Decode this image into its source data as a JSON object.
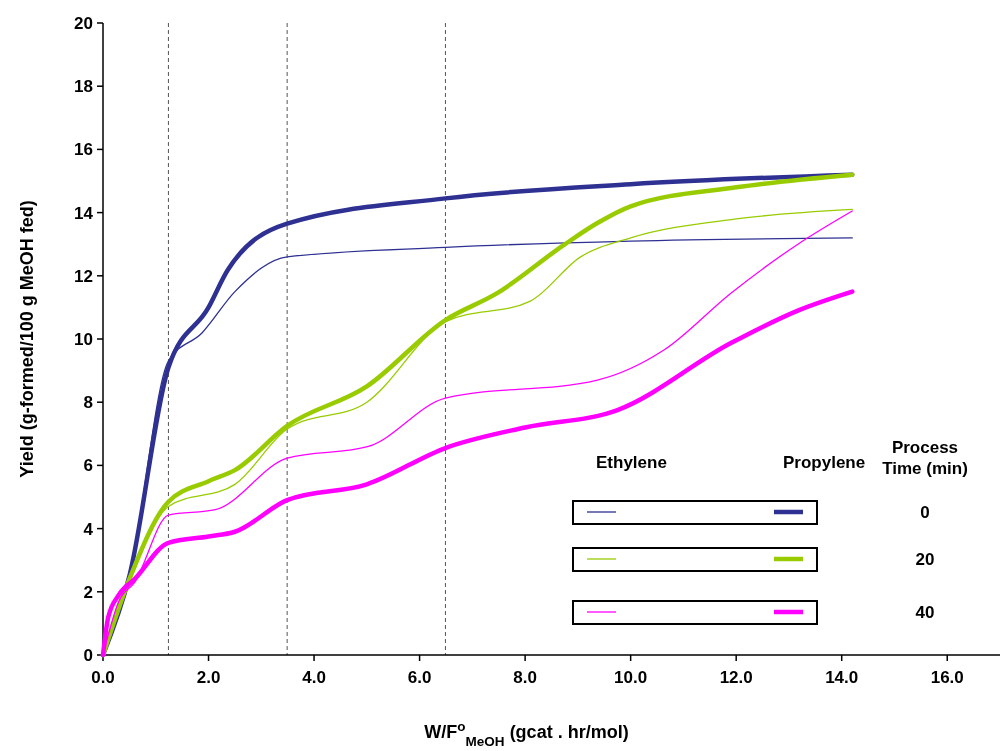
{
  "chart_data": {
    "type": "line",
    "xlabel": "W/F$^{o}$$_{MeOH}$ (gcat . hr/mol)",
    "ylabel": "Yield (g-formed/100 g MeOH fed)",
    "legend_title": "Process Time (min)",
    "annotations": [
      "Ethylene",
      "Propylene",
      "0",
      "20",
      "40"
    ],
    "grid": false,
    "line_style": "solid",
    "xlim": [
      0,
      17
    ],
    "xticks": [
      {
        "value": 0,
        "label": "0.0"
      },
      {
        "value": 2,
        "label": "2.0"
      },
      {
        "value": 4,
        "label": "4.0"
      },
      {
        "value": 6,
        "label": "6.0"
      },
      {
        "value": 8,
        "label": "8.0"
      },
      {
        "value": 10,
        "label": "10.0"
      },
      {
        "value": 12,
        "label": "12.0"
      },
      {
        "value": 14,
        "label": "14.0"
      },
      {
        "value": 16,
        "label": "16.0"
      }
    ],
    "ylim": [
      0,
      20
    ],
    "yticks": [
      0,
      2,
      4,
      6,
      8,
      10,
      12,
      14,
      16,
      18,
      20
    ],
    "ref_lines": [
      {
        "axis": "x",
        "value": 1.24,
        "color": "#555555",
        "line_style": "dashed"
      },
      {
        "axis": "x",
        "value": 3.49,
        "color": "#555555",
        "line_style": "dashed"
      },
      {
        "axis": "x",
        "value": 6.49,
        "color": "#555555",
        "line_style": "dashed"
      }
    ],
    "series": [
      {
        "color": "#2e3192",
        "x": [
          0,
          0.5,
          1.24,
          1.88,
          2.5,
          3.49,
          6.49,
          10,
          14.2
        ],
        "values": [
          0,
          2.5,
          9.3,
          10.2,
          11.5,
          12.6,
          12.9,
          13.1,
          13.2
        ]
      },
      {
        "color": "#2e3192",
        "x": [
          0,
          0.5,
          1.24,
          2.0,
          2.37,
          3.49,
          6.49,
          10,
          14.2
        ],
        "values": [
          0,
          2.5,
          9.1,
          11.0,
          12.2,
          13.65,
          14.45,
          14.9,
          15.2
        ]
      },
      {
        "color": "#99cc00",
        "x": [
          0,
          0.5,
          1.24,
          2.5,
          3.49,
          5,
          6.49,
          8.1,
          9.05,
          10,
          12,
          14.2
        ],
        "values": [
          0,
          2.3,
          4.7,
          5.4,
          7.15,
          8.0,
          10.55,
          11.2,
          12.6,
          13.2,
          13.8,
          14.1
        ]
      },
      {
        "color": "#99cc00",
        "x": [
          0,
          0.5,
          1.24,
          2.0,
          2.5,
          3.49,
          5,
          6.49,
          7.47,
          8.73,
          9.37,
          10,
          12,
          14.2
        ],
        "values": [
          0,
          2.4,
          4.85,
          5.5,
          5.85,
          7.25,
          8.5,
          10.6,
          11.45,
          12.97,
          13.67,
          14.2,
          14.8,
          15.2
        ]
      },
      {
        "color": "#ff00ff",
        "x": [
          0,
          0.3,
          0.6,
          1.24,
          2.13,
          3.49,
          5.03,
          6.49,
          9.37,
          10.63,
          11.9,
          13.17,
          14.2
        ],
        "values": [
          0,
          1.7,
          2.3,
          4.43,
          4.6,
          6.23,
          6.6,
          8.13,
          8.7,
          9.65,
          11.45,
          13.0,
          14.05
        ]
      },
      {
        "color": "#ff00ff",
        "x": [
          0,
          0.1,
          0.3,
          0.6,
          1.24,
          2.0,
          2.5,
          3.49,
          5,
          6.49,
          8,
          9.75,
          11.9,
          13.17,
          14.2
        ],
        "values": [
          0,
          1.2,
          1.9,
          2.4,
          3.55,
          3.75,
          3.9,
          4.9,
          5.4,
          6.55,
          7.2,
          7.75,
          9.87,
          10.9,
          11.5
        ]
      }
    ]
  }
}
